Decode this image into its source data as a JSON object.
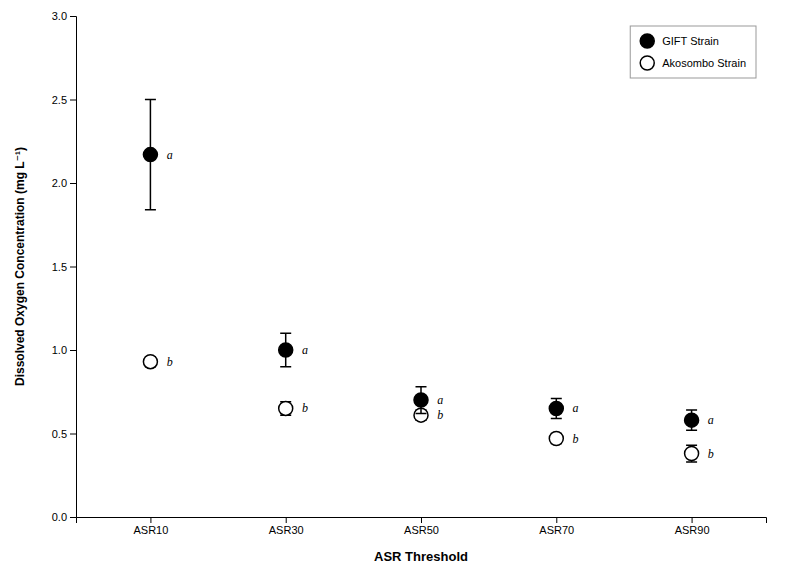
{
  "chart_data": {
    "type": "scatter",
    "categories": [
      "ASR10",
      "ASR30",
      "ASR50",
      "ASR70",
      "ASR90"
    ],
    "series": [
      {
        "name": "GIFT Strain",
        "color": "#000000",
        "marker": "circle",
        "values": [
          2.17,
          1.0,
          0.7,
          0.65,
          0.58
        ],
        "errors": [
          0.33,
          0.1,
          0.08,
          0.06,
          0.06
        ],
        "labels": [
          "a",
          "a",
          "a",
          "a",
          "a"
        ]
      },
      {
        "name": "Akosombo Strain",
        "color": "#000000",
        "marker": "circle-open",
        "values": [
          0.93,
          0.65,
          0.61,
          0.47,
          0.38
        ],
        "errors": [
          0.03,
          0.04,
          0.03,
          0.03,
          0.05
        ],
        "labels": [
          "b",
          "b",
          "b",
          "b",
          "b"
        ]
      }
    ],
    "xlabel": "ASR Threshold",
    "ylabel": "Dissolved Oxygen Concentration (mg L⁻¹)",
    "ylim": [
      0.0,
      3.0
    ],
    "yticks": [
      {
        "value": 0.0,
        "label": "0.0"
      },
      {
        "value": 0.5,
        "label": "0.5"
      },
      {
        "value": 1.0,
        "label": "1.0"
      },
      {
        "value": 1.5,
        "label": "1.5"
      },
      {
        "value": 2.0,
        "label": "2.0"
      },
      {
        "value": 2.5,
        "label": "2.5"
      },
      {
        "value": 3.0,
        "label": "3.0"
      }
    ],
    "grid": false,
    "legend": "upper right"
  }
}
